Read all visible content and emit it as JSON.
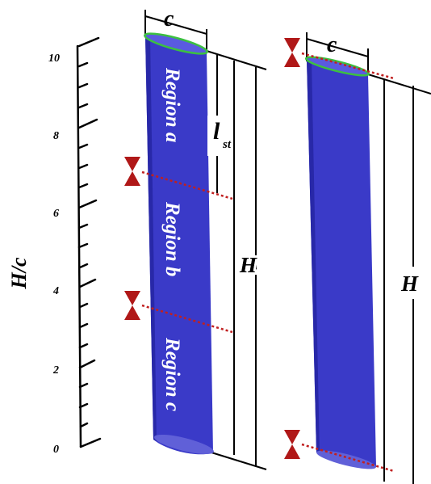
{
  "axis": {
    "label": "H/c",
    "ticks": [
      "10",
      "8",
      "6",
      "4",
      "2",
      "0"
    ]
  },
  "blades": {
    "left": {
      "chord_label": "c",
      "span_label": "H",
      "st_label_main": "l",
      "st_label_sub": "st",
      "regions": [
        "Region a",
        "Region b",
        "Region c"
      ]
    },
    "right": {
      "chord_label": "c",
      "span_label": "H"
    }
  },
  "colors": {
    "blade": "#3a3ac8",
    "blade_edge": "#2525a8",
    "tip": "#3cc040",
    "marker": "#b01818",
    "cut_line": "#c02020"
  }
}
